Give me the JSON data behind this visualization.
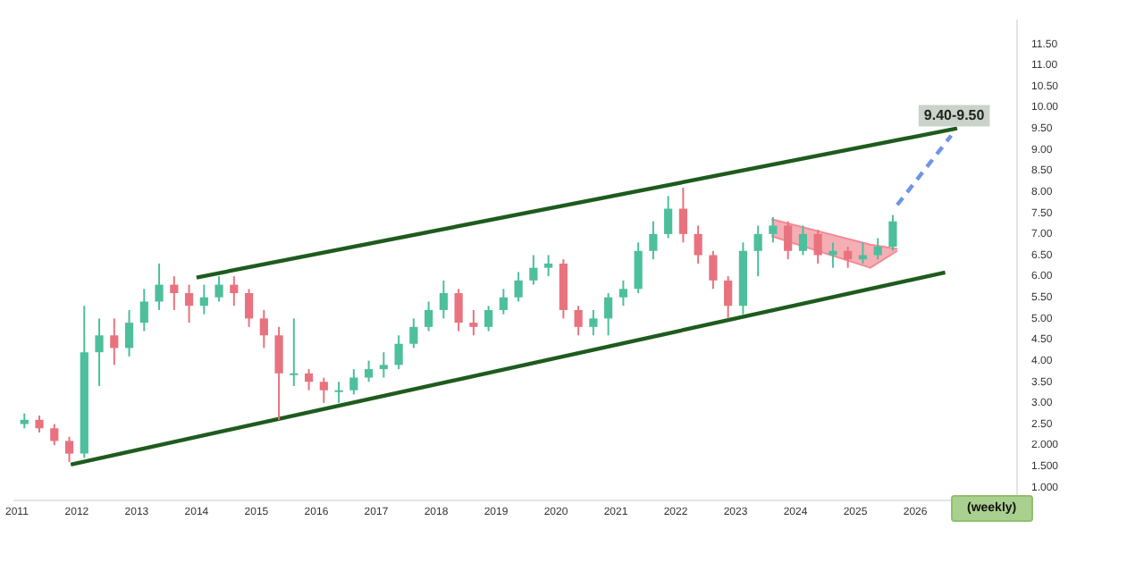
{
  "chart_data": {
    "type": "candlestick",
    "x": [
      2011.125,
      2011.375,
      2011.625,
      2011.875,
      2012.125,
      2012.375,
      2012.625,
      2012.875,
      2013.125,
      2013.375,
      2013.625,
      2013.875,
      2014.125,
      2014.375,
      2014.625,
      2014.875,
      2015.125,
      2015.375,
      2015.625,
      2015.875,
      2016.125,
      2016.375,
      2016.625,
      2016.875,
      2017.125,
      2017.375,
      2017.625,
      2017.875,
      2018.125,
      2018.375,
      2018.625,
      2018.875,
      2019.125,
      2019.375,
      2019.625,
      2019.875,
      2020.125,
      2020.375,
      2020.625,
      2020.875,
      2021.125,
      2021.375,
      2021.625,
      2021.875,
      2022.125,
      2022.375,
      2022.625,
      2022.875,
      2023.125,
      2023.375,
      2023.625,
      2023.875,
      2024.125,
      2024.375,
      2024.625,
      2024.875,
      2025.125,
      2025.375,
      2025.625
    ],
    "ohlc": [
      [
        2.5,
        2.75,
        2.4,
        2.6
      ],
      [
        2.6,
        2.7,
        2.3,
        2.4
      ],
      [
        2.4,
        2.5,
        2.0,
        2.1
      ],
      [
        2.1,
        2.2,
        1.6,
        1.8
      ],
      [
        1.8,
        5.3,
        1.7,
        4.2
      ],
      [
        4.2,
        5.0,
        3.4,
        4.6
      ],
      [
        4.6,
        5.0,
        3.9,
        4.3
      ],
      [
        4.3,
        5.2,
        4.1,
        4.9
      ],
      [
        4.9,
        5.7,
        4.7,
        5.4
      ],
      [
        5.4,
        6.3,
        5.2,
        5.8
      ],
      [
        5.8,
        6.0,
        5.2,
        5.6
      ],
      [
        5.6,
        5.8,
        4.9,
        5.3
      ],
      [
        5.3,
        5.8,
        5.1,
        5.5
      ],
      [
        5.5,
        6.0,
        5.4,
        5.8
      ],
      [
        5.8,
        6.0,
        5.3,
        5.6
      ],
      [
        5.6,
        5.7,
        4.8,
        5.0
      ],
      [
        5.0,
        5.2,
        4.3,
        4.6
      ],
      [
        4.6,
        4.8,
        2.6,
        3.7
      ],
      [
        3.7,
        5.0,
        3.4,
        3.7
      ],
      [
        3.7,
        3.8,
        3.3,
        3.5
      ],
      [
        3.5,
        3.6,
        3.0,
        3.3
      ],
      [
        3.3,
        3.5,
        3.0,
        3.3
      ],
      [
        3.3,
        3.8,
        3.2,
        3.6
      ],
      [
        3.6,
        4.0,
        3.5,
        3.8
      ],
      [
        3.8,
        4.2,
        3.6,
        3.9
      ],
      [
        3.9,
        4.6,
        3.8,
        4.4
      ],
      [
        4.4,
        5.0,
        4.3,
        4.8
      ],
      [
        4.8,
        5.4,
        4.7,
        5.2
      ],
      [
        5.2,
        5.9,
        5.0,
        5.6
      ],
      [
        5.6,
        5.7,
        4.7,
        4.9
      ],
      [
        4.9,
        5.2,
        4.6,
        4.8
      ],
      [
        4.8,
        5.3,
        4.7,
        5.2
      ],
      [
        5.2,
        5.7,
        5.1,
        5.5
      ],
      [
        5.5,
        6.1,
        5.4,
        5.9
      ],
      [
        5.9,
        6.5,
        5.8,
        6.2
      ],
      [
        6.2,
        6.5,
        6.0,
        6.3
      ],
      [
        6.3,
        6.4,
        5.0,
        5.2
      ],
      [
        5.2,
        5.3,
        4.6,
        4.8
      ],
      [
        4.8,
        5.2,
        4.6,
        5.0
      ],
      [
        5.0,
        5.6,
        4.6,
        5.5
      ],
      [
        5.5,
        5.9,
        5.3,
        5.7
      ],
      [
        5.7,
        6.8,
        5.6,
        6.6
      ],
      [
        6.6,
        7.3,
        6.4,
        7.0
      ],
      [
        7.0,
        7.9,
        6.9,
        7.6
      ],
      [
        7.6,
        8.1,
        6.8,
        7.0
      ],
      [
        7.0,
        7.2,
        6.3,
        6.5
      ],
      [
        6.5,
        6.6,
        5.7,
        5.9
      ],
      [
        5.9,
        6.0,
        5.0,
        5.3
      ],
      [
        5.3,
        6.8,
        5.1,
        6.6
      ],
      [
        6.6,
        7.2,
        6.0,
        7.0
      ],
      [
        7.0,
        7.4,
        6.8,
        7.2
      ],
      [
        7.2,
        7.3,
        6.4,
        6.6
      ],
      [
        6.6,
        7.2,
        6.5,
        7.0
      ],
      [
        7.0,
        7.1,
        6.3,
        6.5
      ],
      [
        6.5,
        6.8,
        6.2,
        6.6
      ],
      [
        6.6,
        6.7,
        6.2,
        6.4
      ],
      [
        6.4,
        6.8,
        6.3,
        6.5
      ],
      [
        6.5,
        6.9,
        6.4,
        6.7
      ],
      [
        6.7,
        7.45,
        6.6,
        7.3
      ]
    ],
    "colors": [
      "#4dbf9c",
      "#e8737f",
      "#e8737f",
      "#e8737f",
      "#4dbf9c",
      "#4dbf9c",
      "#e8737f",
      "#4dbf9c",
      "#4dbf9c",
      "#4dbf9c",
      "#e8737f",
      "#e8737f",
      "#4dbf9c",
      "#4dbf9c",
      "#e8737f",
      "#e8737f",
      "#e8737f",
      "#e8737f",
      "#4dbf9c",
      "#e8737f",
      "#e8737f",
      "#4dbf9c",
      "#4dbf9c",
      "#4dbf9c",
      "#4dbf9c",
      "#4dbf9c",
      "#4dbf9c",
      "#4dbf9c",
      "#4dbf9c",
      "#e8737f",
      "#e8737f",
      "#4dbf9c",
      "#4dbf9c",
      "#4dbf9c",
      "#4dbf9c",
      "#4dbf9c",
      "#e8737f",
      "#e8737f",
      "#4dbf9c",
      "#4dbf9c",
      "#4dbf9c",
      "#4dbf9c",
      "#4dbf9c",
      "#4dbf9c",
      "#e8737f",
      "#e8737f",
      "#e8737f",
      "#e8737f",
      "#4dbf9c",
      "#4dbf9c",
      "#4dbf9c",
      "#e8737f",
      "#4dbf9c",
      "#e8737f",
      "#4dbf9c",
      "#e8737f",
      "#4dbf9c",
      "#4dbf9c",
      "#4dbf9c"
    ],
    "series": [
      {
        "type": "line",
        "x": [
          2014.0,
          2026.7
        ],
        "values": [
          5.97,
          9.5
        ],
        "color": "#1e5b1e"
      },
      {
        "type": "line",
        "x": [
          2011.9,
          2026.5
        ],
        "values": [
          1.54,
          6.09
        ],
        "color": "#1e5b1e"
      },
      {
        "type": "line",
        "x": [
          2025.7,
          2026.6
        ],
        "values": [
          7.69,
          9.33
        ],
        "color": "#6f94e8",
        "line_style": "dashed"
      },
      {
        "type": "line",
        "x": [
          2023.6,
          2025.25,
          2025.7
        ],
        "values": [
          6.95,
          6.2,
          6.6
        ],
        "color": "#f28b96"
      },
      {
        "type": "area",
        "x": [
          2023.6,
          2025.25,
          2025.7
        ],
        "values": [
          7.35,
          6.75,
          6.65
        ],
        "color": "#f28b96"
      }
    ],
    "xlim": [
      2010.95,
      2027.7
    ],
    "xticks": [
      2011,
      2012,
      2013,
      2014,
      2015,
      2016,
      2017,
      2018,
      2019,
      2020,
      2021,
      2022,
      2023,
      2024,
      2025,
      2026
    ],
    "ylim": [
      0.7,
      12.05
    ],
    "yticks": [
      {
        "value": 1,
        "label": "1.000"
      },
      {
        "value": 1.5,
        "label": "1.500"
      },
      {
        "value": 2,
        "label": "2.000"
      },
      {
        "value": 2.5,
        "label": "2.50"
      },
      {
        "value": 3,
        "label": "3.00"
      },
      {
        "value": 3.5,
        "label": "3.50"
      },
      {
        "value": 4,
        "label": "4.00"
      },
      {
        "value": 4.5,
        "label": "4.50"
      },
      {
        "value": 5,
        "label": "5.00"
      },
      {
        "value": 5.5,
        "label": "5.50"
      },
      {
        "value": 6,
        "label": "6.00"
      },
      {
        "value": 6.5,
        "label": "6.50"
      },
      {
        "value": 7,
        "label": "7.00"
      },
      {
        "value": 7.5,
        "label": "7.50"
      },
      {
        "value": 8,
        "label": "8.00"
      },
      {
        "value": 8.5,
        "label": "8.50"
      },
      {
        "value": 9,
        "label": "9.00"
      },
      {
        "value": 9.5,
        "label": "9.50"
      },
      {
        "value": 10,
        "label": "10.00"
      },
      {
        "value": 10.5,
        "label": "10.50"
      },
      {
        "value": 11,
        "label": "11.00"
      },
      {
        "value": 11.5,
        "label": "11.50"
      }
    ],
    "annotations": [
      {
        "text": "9.40-9.50",
        "x": 2026.65,
        "y": 9.8
      },
      "(weekly)"
    ],
    "grid": false,
    "legend": false
  }
}
